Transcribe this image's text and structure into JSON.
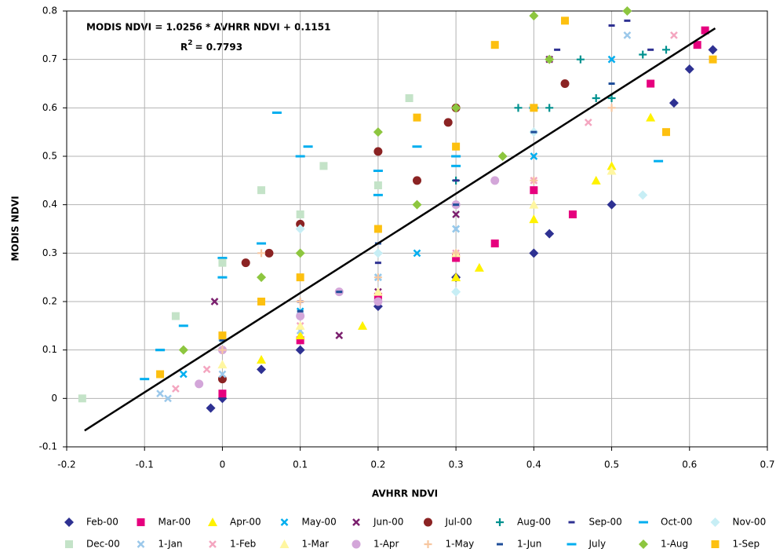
{
  "chart_data": {
    "type": "scatter",
    "xlabel": "AVHRR NDVI",
    "ylabel": "MODIS NDVI",
    "equation": "MODIS NDVI = 1.0256 * AVHRR NDVI + 0.1151",
    "r2": {
      "base": "R",
      "sup": "2",
      "rest": "= 0.7793"
    },
    "xlim": [
      -0.2,
      0.7
    ],
    "ylim": [
      -0.1,
      0.8
    ],
    "xticks": [
      -0.2,
      -0.1,
      0,
      0.1,
      0.2,
      0.3,
      0.4,
      0.5,
      0.6,
      0.7
    ],
    "yticks": [
      -0.1,
      0,
      0.1,
      0.2,
      0.3,
      0.4,
      0.5,
      0.6,
      0.7,
      0.8
    ],
    "grid": true,
    "legend": "bottom",
    "trendline": {
      "color": "#000000",
      "x": [
        -0.177,
        0.633
      ],
      "values": [
        -0.0664,
        0.7643
      ]
    },
    "series": [
      {
        "name": "Feb-00",
        "color": "#2e3192",
        "marker": "diamond",
        "x": [
          -0.015,
          0.0,
          0.05,
          0.1,
          0.2,
          0.3,
          0.4,
          0.42,
          0.5,
          0.6,
          0.63,
          0.58
        ],
        "values": [
          -0.02,
          0.0,
          0.06,
          0.1,
          0.19,
          0.25,
          0.3,
          0.34,
          0.4,
          0.68,
          0.72,
          0.61
        ]
      },
      {
        "name": "Mar-00",
        "color": "#e6007e",
        "marker": "square",
        "x": [
          0.0,
          0.1,
          0.2,
          0.3,
          0.35,
          0.4,
          0.45,
          0.55,
          0.61,
          0.62
        ],
        "values": [
          0.01,
          0.12,
          0.21,
          0.29,
          0.32,
          0.43,
          0.38,
          0.65,
          0.73,
          0.76
        ]
      },
      {
        "name": "Apr-00",
        "color": "#fff200",
        "marker": "triangle",
        "x": [
          0.05,
          0.1,
          0.18,
          0.3,
          0.33,
          0.4,
          0.48,
          0.5,
          0.55
        ],
        "values": [
          0.08,
          0.13,
          0.15,
          0.25,
          0.27,
          0.37,
          0.45,
          0.48,
          0.58
        ]
      },
      {
        "name": "May-00",
        "color": "#00aeef",
        "marker": "x",
        "x": [
          -0.05,
          0.1,
          0.2,
          0.25,
          0.3,
          0.4,
          0.5
        ],
        "values": [
          0.05,
          0.18,
          0.25,
          0.3,
          0.35,
          0.5,
          0.7
        ]
      },
      {
        "name": "Jun-00",
        "color": "#7b1f6e",
        "marker": "x",
        "x": [
          -0.01,
          0.05,
          0.1,
          0.15,
          0.2,
          0.3,
          0.42
        ],
        "values": [
          0.2,
          0.2,
          0.25,
          0.13,
          0.22,
          0.38,
          0.7
        ]
      },
      {
        "name": "Jul-00",
        "color": "#8b2323",
        "marker": "circle",
        "x": [
          0.0,
          0.03,
          0.06,
          0.1,
          0.2,
          0.25,
          0.29,
          0.3,
          0.44
        ],
        "values": [
          0.04,
          0.28,
          0.3,
          0.36,
          0.51,
          0.45,
          0.57,
          0.6,
          0.65
        ]
      },
      {
        "name": "Aug-00",
        "color": "#00918f",
        "marker": "plus",
        "x": [
          0.2,
          0.3,
          0.38,
          0.42,
          0.46,
          0.48,
          0.5,
          0.54,
          0.57
        ],
        "values": [
          0.3,
          0.45,
          0.6,
          0.6,
          0.7,
          0.62,
          0.62,
          0.71,
          0.72
        ]
      },
      {
        "name": "Sep-00",
        "color": "#2e3192",
        "marker": "dash",
        "x": [
          0.0,
          0.1,
          0.2,
          0.3,
          0.4,
          0.43,
          0.5,
          0.52,
          0.55
        ],
        "values": [
          0.12,
          0.2,
          0.28,
          0.45,
          0.6,
          0.72,
          0.77,
          0.78,
          0.72
        ]
      },
      {
        "name": "Oct-00",
        "color": "#00aeef",
        "marker": "longdash",
        "x": [
          -0.1,
          -0.08,
          0.0,
          0.07,
          0.1,
          0.2,
          0.3,
          0.4,
          0.56
        ],
        "values": [
          0.04,
          0.1,
          0.29,
          0.59,
          0.5,
          0.42,
          0.5,
          0.6,
          0.49
        ]
      },
      {
        "name": "Nov-00",
        "color": "#c7eef5",
        "marker": "diamond",
        "x": [
          0.0,
          0.1,
          0.2,
          0.3,
          0.4,
          0.54
        ],
        "values": [
          0.12,
          0.35,
          0.3,
          0.22,
          0.55,
          0.42
        ]
      },
      {
        "name": "Dec-00",
        "color": "#c4e3c8",
        "marker": "square",
        "x": [
          -0.18,
          -0.06,
          0.0,
          0.05,
          0.1,
          0.13,
          0.2,
          0.24
        ],
        "values": [
          0.0,
          0.17,
          0.28,
          0.43,
          0.38,
          0.48,
          0.44,
          0.62
        ]
      },
      {
        "name": "1-Jan",
        "color": "#9bc8ea",
        "marker": "x",
        "x": [
          -0.08,
          -0.07,
          0.0,
          0.1,
          0.2,
          0.3,
          0.52
        ],
        "values": [
          0.01,
          0.0,
          0.05,
          0.14,
          0.25,
          0.35,
          0.75
        ]
      },
      {
        "name": "1-Feb",
        "color": "#f4a6c0",
        "marker": "x",
        "x": [
          -0.06,
          -0.02,
          0.1,
          0.3,
          0.4,
          0.47,
          0.58
        ],
        "values": [
          0.02,
          0.06,
          0.15,
          0.3,
          0.45,
          0.57,
          0.75
        ]
      },
      {
        "name": "1-Mar",
        "color": "#fff6a0",
        "marker": "triangle",
        "x": [
          0.0,
          0.1,
          0.2,
          0.3,
          0.4,
          0.5
        ],
        "values": [
          0.07,
          0.15,
          0.22,
          0.3,
          0.4,
          0.47
        ]
      },
      {
        "name": "1-Apr",
        "color": "#d3a6d9",
        "marker": "circle",
        "x": [
          -0.03,
          0.0,
          0.1,
          0.15,
          0.2,
          0.3,
          0.35
        ],
        "values": [
          0.03,
          0.1,
          0.17,
          0.22,
          0.2,
          0.4,
          0.45
        ]
      },
      {
        "name": "1-May",
        "color": "#f7c7a0",
        "marker": "plus",
        "x": [
          0.0,
          0.05,
          0.1,
          0.2,
          0.3,
          0.4,
          0.5
        ],
        "values": [
          0.1,
          0.3,
          0.2,
          0.25,
          0.3,
          0.45,
          0.6
        ]
      },
      {
        "name": "1-Jun",
        "color": "#1f4e9a",
        "marker": "dash",
        "x": [
          0.0,
          0.1,
          0.15,
          0.2,
          0.3,
          0.4,
          0.5
        ],
        "values": [
          0.12,
          0.18,
          0.22,
          0.32,
          0.4,
          0.55,
          0.65
        ]
      },
      {
        "name": "July",
        "color": "#00aeef",
        "marker": "longdash",
        "x": [
          -0.08,
          -0.05,
          0.0,
          0.05,
          0.11,
          0.2,
          0.25,
          0.3
        ],
        "values": [
          0.1,
          0.15,
          0.25,
          0.32,
          0.52,
          0.47,
          0.52,
          0.48
        ]
      },
      {
        "name": "1-Aug",
        "color": "#8dc63f",
        "marker": "diamond",
        "x": [
          -0.05,
          0.05,
          0.1,
          0.2,
          0.25,
          0.3,
          0.36,
          0.4,
          0.42,
          0.52
        ],
        "values": [
          0.1,
          0.25,
          0.3,
          0.55,
          0.4,
          0.6,
          0.5,
          0.79,
          0.7,
          0.8
        ]
      },
      {
        "name": "1-Sep",
        "color": "#fdc010",
        "marker": "square",
        "x": [
          -0.08,
          0.0,
          0.05,
          0.1,
          0.2,
          0.25,
          0.3,
          0.35,
          0.4,
          0.44,
          0.57,
          0.63
        ],
        "values": [
          0.05,
          0.13,
          0.2,
          0.25,
          0.35,
          0.58,
          0.52,
          0.73,
          0.6,
          0.78,
          0.55,
          0.7
        ]
      }
    ]
  }
}
